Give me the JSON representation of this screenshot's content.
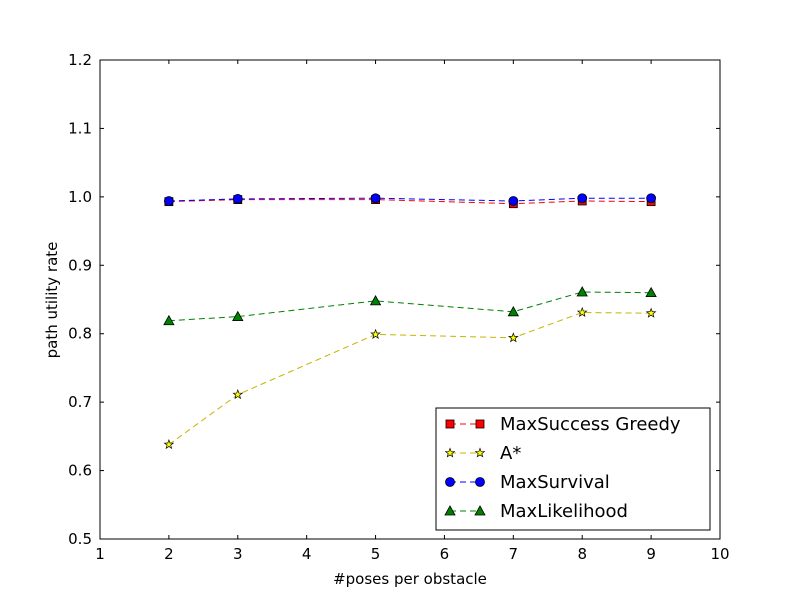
{
  "chart_data": {
    "type": "line",
    "title": "",
    "xlabel": "#poses per obstacle",
    "ylabel": "path utility rate",
    "xlim": [
      1,
      10
    ],
    "ylim": [
      0.5,
      1.2
    ],
    "xticks": [
      "1",
      "2",
      "3",
      "4",
      "5",
      "6",
      "7",
      "8",
      "9",
      "10"
    ],
    "yticks": [
      "0.5",
      "0.6",
      "0.7",
      "0.8",
      "0.9",
      "1.0",
      "1.1",
      "1.2"
    ],
    "grid": false,
    "legend_position": "bottom-right",
    "x": [
      2,
      3,
      5,
      7,
      8,
      9
    ],
    "series": [
      {
        "name": "MaxSuccess Greedy",
        "marker": "square",
        "color": "#ff0000",
        "line_color": "#ff0000",
        "values": [
          0.993,
          0.996,
          0.996,
          0.99,
          0.994,
          0.993
        ]
      },
      {
        "name": "A*",
        "marker": "star",
        "color": "#ffff00",
        "line_color": "#c8b400",
        "values": [
          0.638,
          0.711,
          0.799,
          0.794,
          0.831,
          0.83
        ]
      },
      {
        "name": "MaxSurvival",
        "marker": "circle",
        "color": "#0000ff",
        "line_color": "#0000ff",
        "values": [
          0.994,
          0.997,
          0.998,
          0.994,
          0.998,
          0.998
        ]
      },
      {
        "name": "MaxLikelihood",
        "marker": "triangle",
        "color": "#008000",
        "line_color": "#008000",
        "values": [
          0.819,
          0.825,
          0.848,
          0.832,
          0.861,
          0.86
        ]
      }
    ]
  }
}
